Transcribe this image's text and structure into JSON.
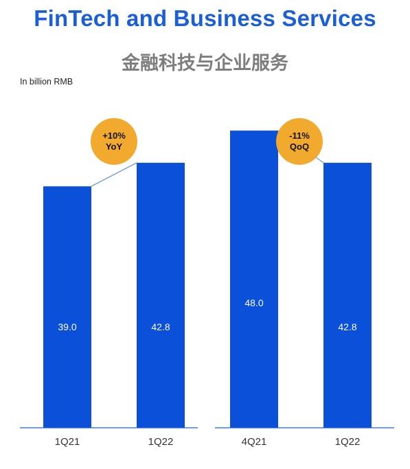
{
  "header": {
    "title": "FinTech and Business Services",
    "subtitle": "金融科技与企业服务"
  },
  "unit_label": "In billion RMB",
  "colors": {
    "title": "#1a5fd6",
    "bar": "#0a50d8",
    "connector": "#5b8fe0",
    "badge": "#f2aa2e",
    "axis": "#1a5fd6"
  },
  "chart_data": [
    {
      "type": "bar",
      "categories": [
        "1Q21",
        "1Q22"
      ],
      "values": [
        39.0,
        42.8
      ],
      "value_labels": [
        "39.0",
        "42.8"
      ],
      "badge": {
        "line1": "+10%",
        "line2": "YoY"
      },
      "ylim": [
        0,
        58
      ],
      "title": "",
      "xlabel": "",
      "ylabel": ""
    },
    {
      "type": "bar",
      "categories": [
        "4Q21",
        "1Q22"
      ],
      "values": [
        48.0,
        42.8
      ],
      "value_labels": [
        "48.0",
        "42.8"
      ],
      "badge": {
        "line1": "-11%",
        "line2": "QoQ"
      },
      "ylim": [
        0,
        58
      ],
      "title": "",
      "xlabel": "",
      "ylabel": ""
    }
  ]
}
